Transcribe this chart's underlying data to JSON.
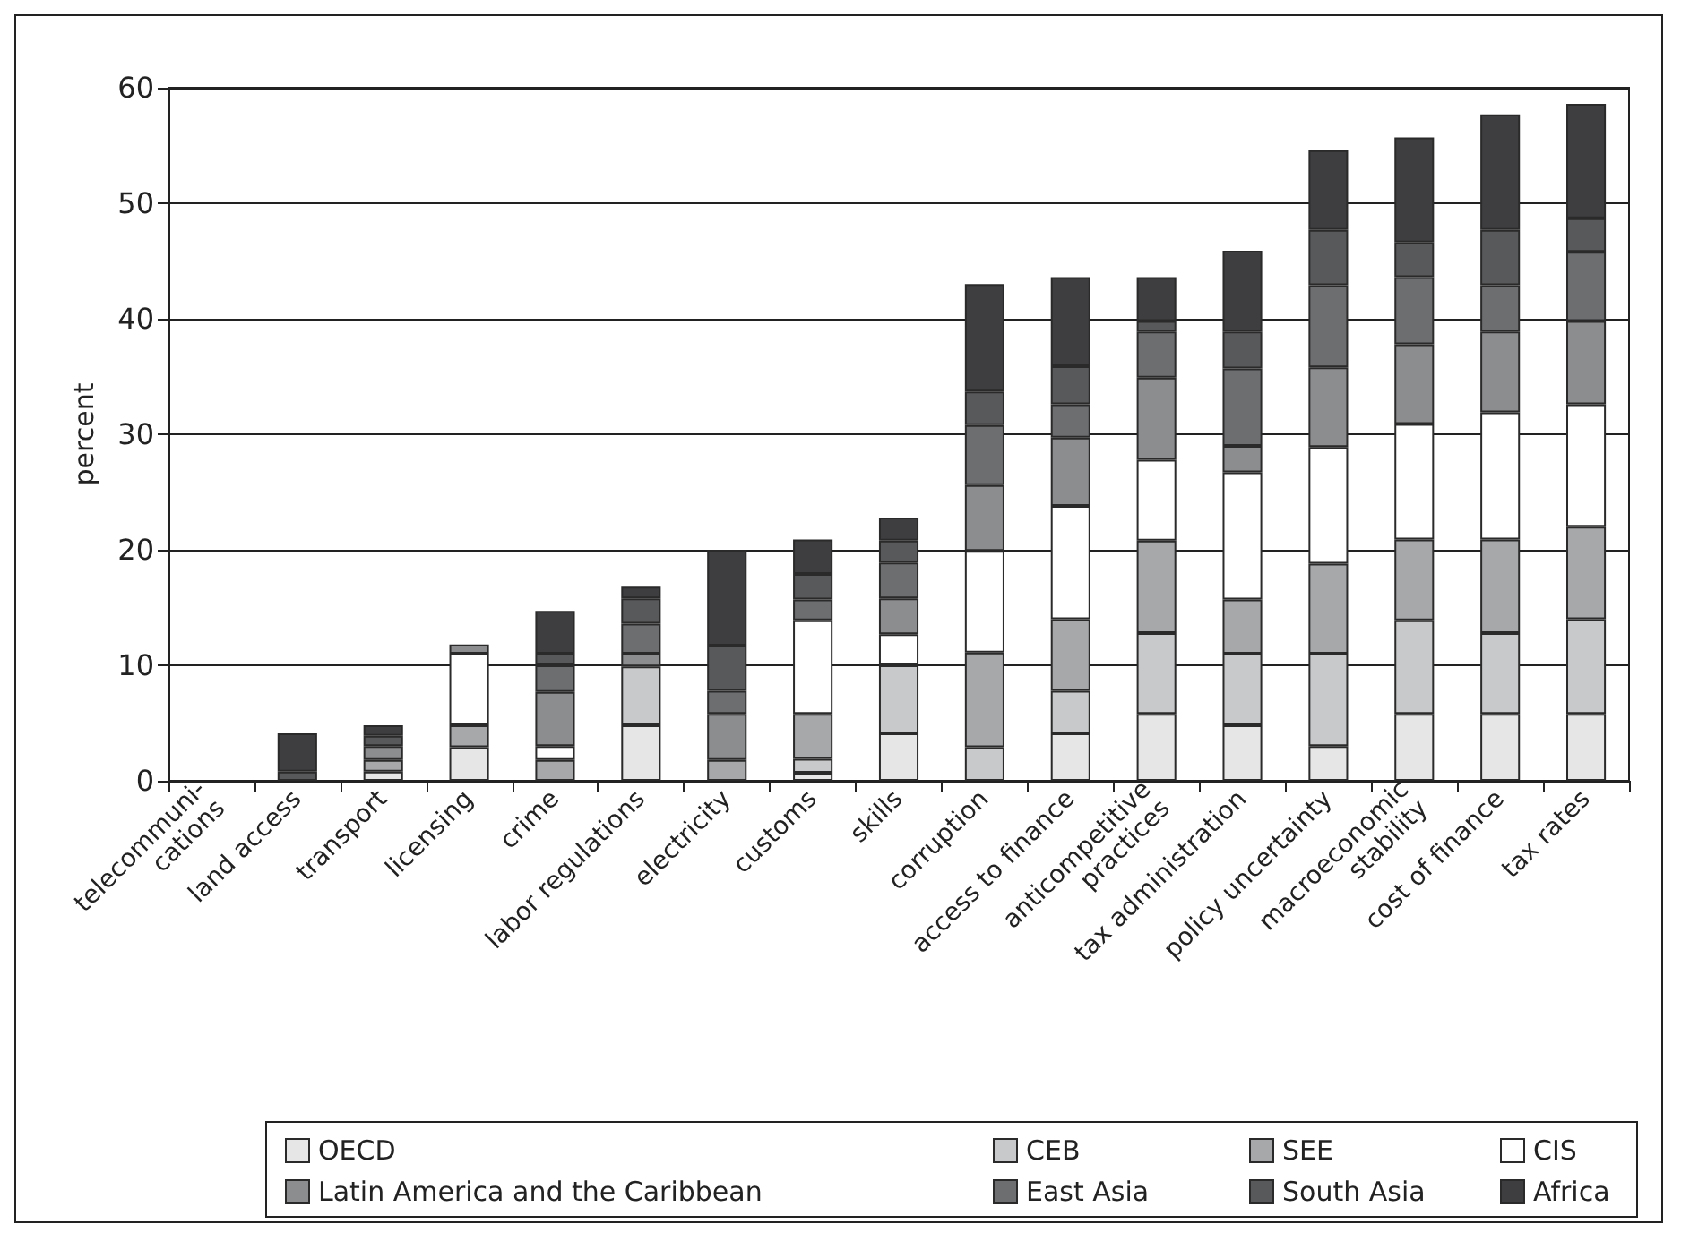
{
  "chart_data": {
    "type": "bar",
    "stacked": true,
    "ylabel": "percent",
    "categories": [
      "telecommuni-\ncations",
      "land access",
      "transport",
      "licensing",
      "crime",
      "labor regulations",
      "electricity",
      "customs",
      "skills",
      "corruption",
      "access to finance",
      "anticompetitive\npractices",
      "tax administration",
      "policy uncertainty",
      "macroeconomic\nstability",
      "cost of finance",
      "tax rates"
    ],
    "ylim": [
      0,
      60
    ],
    "yticks": [
      0,
      10,
      20,
      30,
      40,
      50,
      60
    ],
    "grid": "y",
    "legend": "bottom",
    "series": [
      {
        "name": "OECD",
        "color": "#e6e6e7",
        "values": [
          0,
          0,
          0.8,
          2.9,
          0,
          4.8,
          0,
          0.7,
          4.1,
          0,
          4.1,
          5.8,
          4.8,
          3.0,
          5.8,
          5.8,
          5.8
        ]
      },
      {
        "name": "CEB",
        "color": "#c8c9ca",
        "values": [
          0,
          0,
          0,
          0,
          0,
          5.1,
          0,
          1.2,
          5.9,
          2.9,
          3.7,
          7.0,
          6.2,
          8.0,
          8.1,
          7.0,
          8.2
        ]
      },
      {
        "name": "SEE",
        "color": "#a7a8aa",
        "values": [
          0,
          0,
          1.0,
          1.9,
          1.8,
          0,
          1.8,
          3.9,
          0,
          8.2,
          6.2,
          8.0,
          4.7,
          7.8,
          7.0,
          8.1,
          8.0
        ]
      },
      {
        "name": "CIS",
        "color": "#ffffff",
        "values": [
          0,
          0,
          0,
          6.2,
          1.2,
          0,
          0,
          8.1,
          2.7,
          8.8,
          9.8,
          7.0,
          11.0,
          10.1,
          10.0,
          11.0,
          10.6
        ]
      },
      {
        "name": "Latin America and the Caribbean",
        "color": "#8c8d8f",
        "values": [
          0,
          0,
          1.2,
          0.8,
          4.7,
          1.1,
          4.0,
          0,
          3.1,
          5.7,
          5.9,
          7.1,
          2.3,
          6.9,
          6.9,
          7.0,
          7.2
        ]
      },
      {
        "name": "East Asia",
        "color": "#6d6e70",
        "values": [
          0,
          0,
          0,
          0,
          2.3,
          2.6,
          2.0,
          1.8,
          3.1,
          5.2,
          2.9,
          4.0,
          6.7,
          7.1,
          5.8,
          4.0,
          6.0
        ]
      },
      {
        "name": "South Asia",
        "color": "#58595b",
        "values": [
          0,
          0.8,
          0.9,
          0,
          1.0,
          2.2,
          3.9,
          2.2,
          1.9,
          2.9,
          3.3,
          0.9,
          3.2,
          4.8,
          3.0,
          4.8,
          2.9
        ]
      },
      {
        "name": "Africa",
        "color": "#3e3e40",
        "values": [
          0,
          3.3,
          0.9,
          0,
          3.7,
          1.0,
          8.3,
          3.0,
          2.0,
          9.3,
          7.7,
          3.8,
          7.0,
          6.9,
          9.1,
          10.0,
          9.9
        ]
      }
    ]
  }
}
